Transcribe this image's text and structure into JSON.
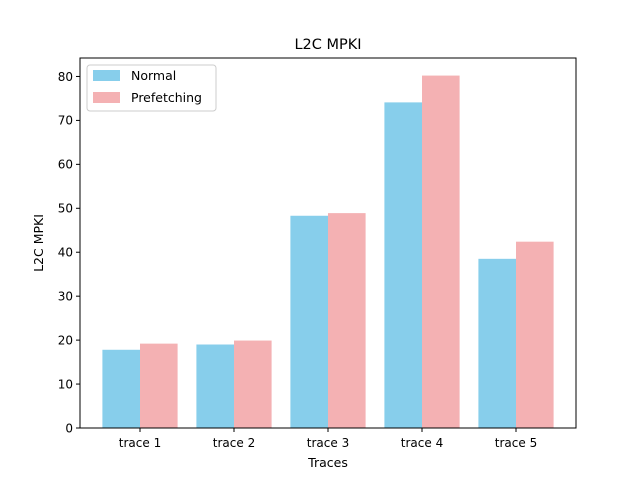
{
  "chart_data": {
    "type": "bar",
    "title": "L2C MPKI",
    "xlabel": "Traces",
    "ylabel": "L2C MPKI",
    "categories": [
      "trace 1",
      "trace 2",
      "trace 3",
      "trace 4",
      "trace 5"
    ],
    "series": [
      {
        "name": "Normal",
        "color": "#87CEEB",
        "values": [
          17.8,
          19.0,
          48.3,
          74.1,
          38.5
        ]
      },
      {
        "name": "Prefetching",
        "color": "#F4B1B3",
        "values": [
          19.2,
          19.9,
          48.9,
          80.2,
          42.4
        ]
      }
    ],
    "ylim": [
      0,
      84.2
    ],
    "yticks": [
      0,
      10,
      20,
      30,
      40,
      50,
      60,
      70,
      80
    ],
    "grid": false,
    "legend": "top-left"
  }
}
